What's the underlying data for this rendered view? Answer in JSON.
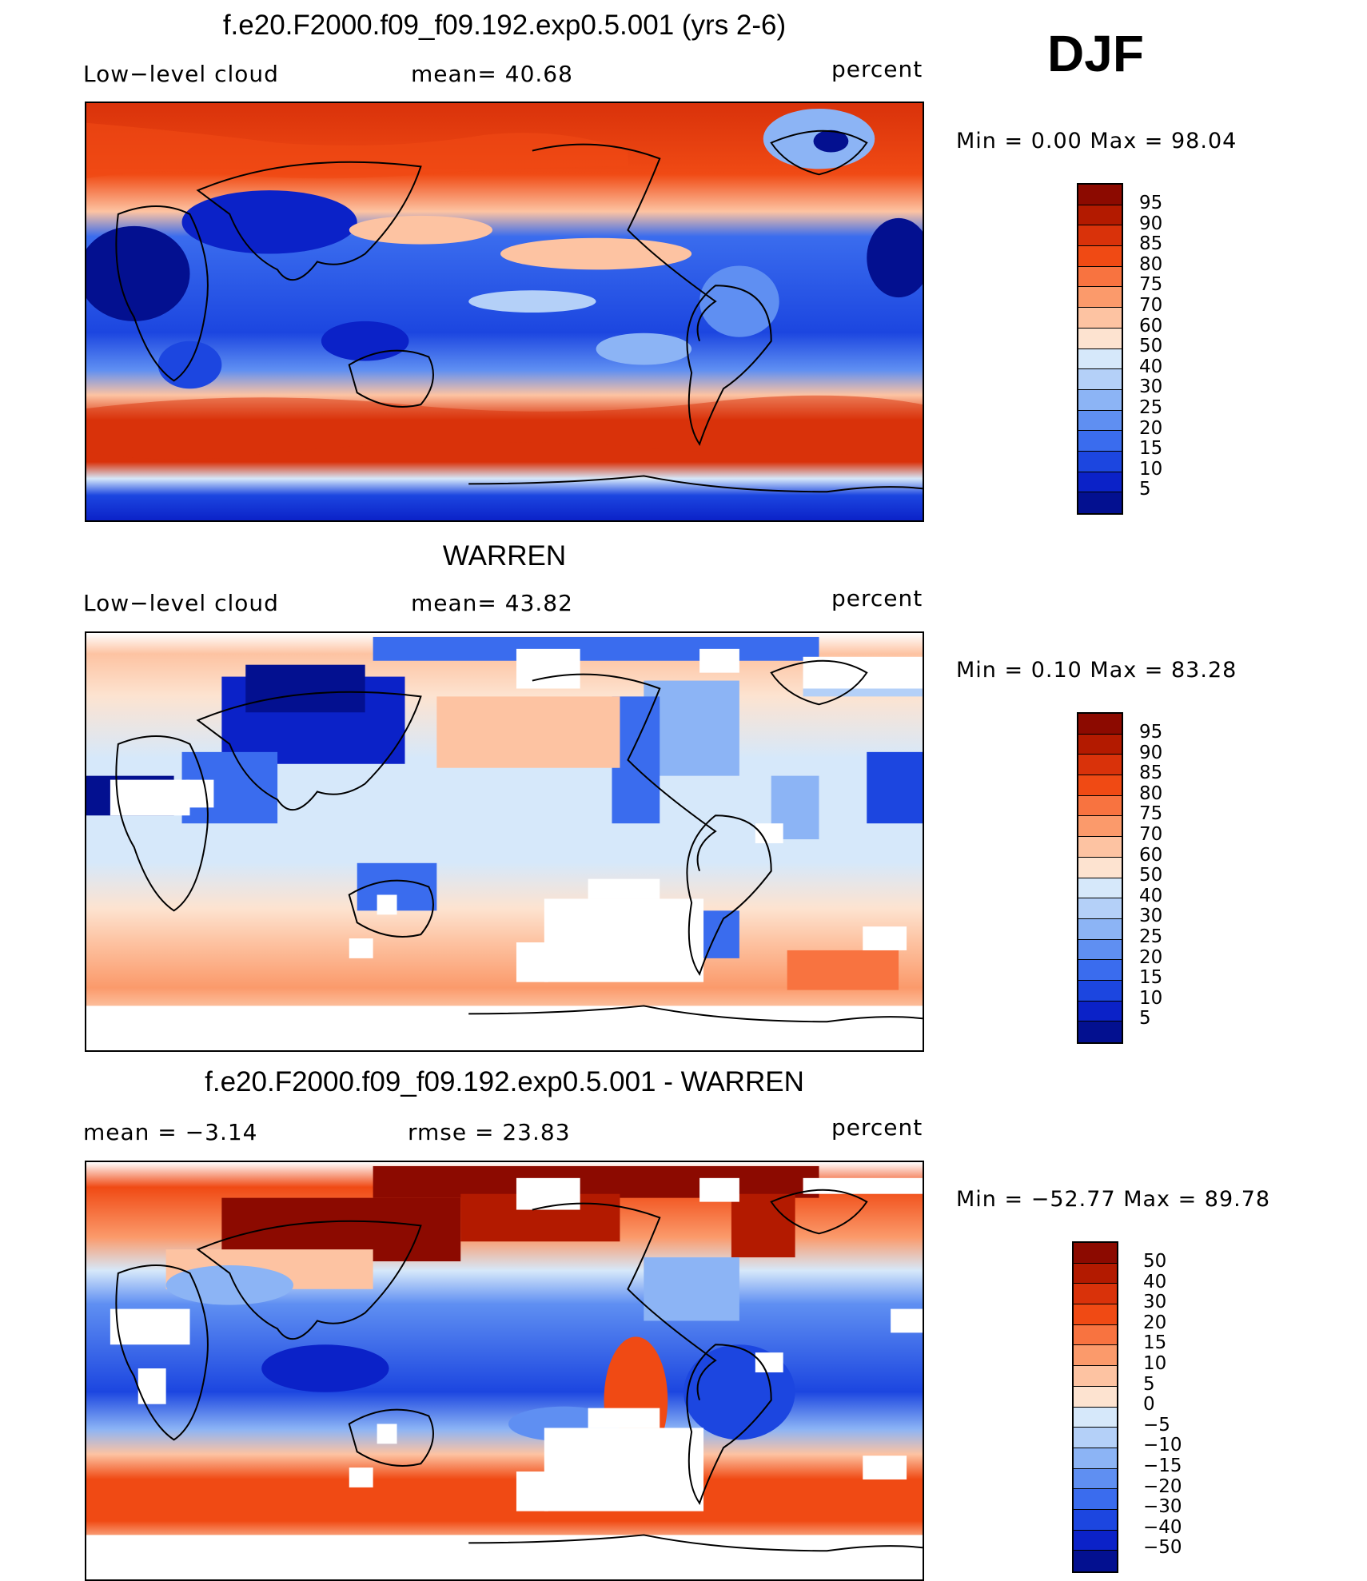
{
  "season": "DJF",
  "panels": [
    {
      "title": "f.e20.F2000.f09_f09.192.exp0.5.001 (yrs 2-6)",
      "left_label": "Low−level cloud",
      "center_label": "mean=   40.68",
      "right_label": "percent",
      "minmax": "Min  =    0.00  Max  =   98.04",
      "colorbar_labels": [
        "95",
        "90",
        "85",
        "80",
        "75",
        "70",
        "60",
        "50",
        "40",
        "30",
        "25",
        "20",
        "15",
        "10",
        "5"
      ],
      "colors": [
        "#8c0a00",
        "#b31a00",
        "#d9320a",
        "#f04a14",
        "#f87340",
        "#fb9a6b",
        "#fdc3a2",
        "#fde3d0",
        "#d6e8fa",
        "#b4d0f8",
        "#8cb4f5",
        "#5f8ff2",
        "#3a6cee",
        "#1c46e0",
        "#0b22c8",
        "#031090"
      ]
    },
    {
      "title": "WARREN",
      "left_label": "Low−level cloud",
      "center_label": "mean=   43.82",
      "right_label": "percent",
      "minmax": "Min  =    0.10  Max  =   83.28",
      "colorbar_labels": [
        "95",
        "90",
        "85",
        "80",
        "75",
        "70",
        "60",
        "50",
        "40",
        "30",
        "25",
        "20",
        "15",
        "10",
        "5"
      ],
      "colors": [
        "#8c0a00",
        "#b31a00",
        "#d9320a",
        "#f04a14",
        "#f87340",
        "#fb9a6b",
        "#fdc3a2",
        "#fde3d0",
        "#d6e8fa",
        "#b4d0f8",
        "#8cb4f5",
        "#5f8ff2",
        "#3a6cee",
        "#1c46e0",
        "#0b22c8",
        "#031090"
      ]
    },
    {
      "title": "f.e20.F2000.f09_f09.192.exp0.5.001 - WARREN",
      "left_label": "mean  =    −3.14",
      "center_label": "rmse  =    23.83",
      "right_label": "percent",
      "minmax": "Min  = −52.77  Max  =   89.78",
      "colorbar_labels": [
        "50",
        "40",
        "30",
        "20",
        "15",
        "10",
        "5",
        "0",
        "−5",
        "−10",
        "−15",
        "−20",
        "−30",
        "−40",
        "−50"
      ],
      "colors": [
        "#8c0a00",
        "#b31a00",
        "#d9320a",
        "#f04a14",
        "#f87340",
        "#fb9a6b",
        "#fdc3a2",
        "#fde3d0",
        "#d6e8fa",
        "#b4d0f8",
        "#8cb4f5",
        "#5f8ff2",
        "#3a6cee",
        "#1c46e0",
        "#0b22c8",
        "#031090"
      ]
    }
  ]
}
